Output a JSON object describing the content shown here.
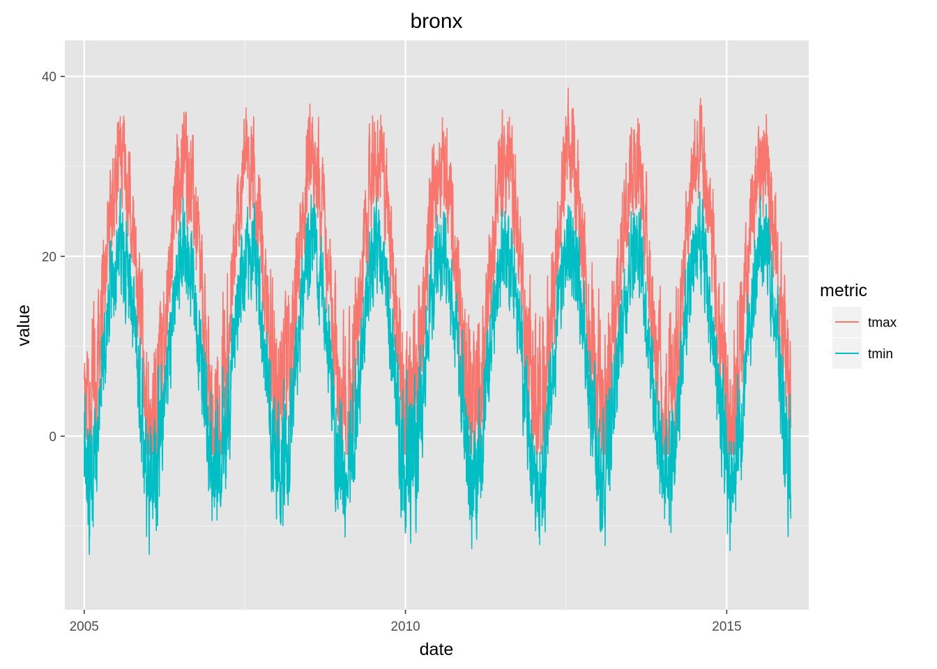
{
  "chart_data": {
    "type": "line",
    "title": "bronx",
    "xlabel": "date",
    "ylabel": "value",
    "x_axis": {
      "type": "date",
      "range": [
        "2004-09-13",
        "2016-04-11"
      ],
      "ticks": [
        "2005",
        "2010",
        "2015"
      ],
      "minor_grid": [
        "2007-07-02",
        "2012-07-01"
      ]
    },
    "y_axis": {
      "range": [
        -19.3,
        44.0
      ],
      "ticks": [
        0,
        20,
        40
      ],
      "tick_labels": [
        "0",
        "20",
        "40"
      ],
      "minor_grid": [
        -10,
        10,
        30
      ]
    },
    "grid": true,
    "background": "#e5e5e5",
    "legend": {
      "title": "metric",
      "placement": "right",
      "entries": [
        {
          "label": "tmax",
          "color": "#f8766d"
        },
        {
          "label": "tmin",
          "color": "#00bfc4"
        }
      ]
    },
    "series": [
      {
        "name": "tmax",
        "color": "#f8766d",
        "x_start": "2005-01-01",
        "x_end": "2015-12-31",
        "annual_pattern": {
          "winter_min_date": "01-24",
          "mean": 17.0,
          "amplitude": 14.0
        },
        "approx_range": [
          -2.0,
          40.2
        ]
      },
      {
        "name": "tmin",
        "color": "#00bfc4",
        "x_start": "2005-01-01",
        "x_end": "2015-12-31",
        "annual_pattern": {
          "winter_min_date": "01-24",
          "mean": 9.0,
          "amplitude": 12.0
        },
        "approx_range": [
          -16.5,
          28.5
        ]
      }
    ]
  }
}
